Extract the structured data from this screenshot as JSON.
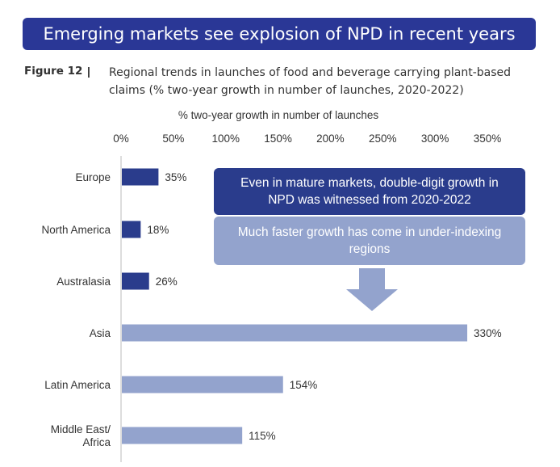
{
  "banner": {
    "title": "Emerging markets see explosion of NPD in recent years"
  },
  "figure": {
    "label": "Figure 12",
    "separator": "|",
    "caption": "Regional trends in launches of food and beverage carrying plant-based claims (% two-year growth in number of launches, 2020-2022)"
  },
  "callouts": {
    "mature": "Even in mature markets, double-digit growth in NPD was witnessed from 2020-2022",
    "faster": "Much faster growth has come in under-indexing regions"
  },
  "colors": {
    "banner": "#2a3796",
    "dark_bar": "#2a3c8c",
    "light_bar": "#93a3cd"
  },
  "chart_data": {
    "type": "bar",
    "orientation": "horizontal",
    "xlabel": "% two-year growth in number of launches",
    "xlim": [
      0,
      350
    ],
    "ticks": [
      0,
      50,
      100,
      150,
      200,
      250,
      300,
      350
    ],
    "tick_labels": [
      "0%",
      "50%",
      "100%",
      "150%",
      "200%",
      "250%",
      "300%",
      "350%"
    ],
    "categories": [
      {
        "label": [
          "Europe"
        ],
        "value": 35,
        "display": "35%",
        "group": "mature"
      },
      {
        "label": [
          "North America"
        ],
        "value": 18,
        "display": "18%",
        "group": "mature"
      },
      {
        "label": [
          "Australasia"
        ],
        "value": 26,
        "display": "26%",
        "group": "mature"
      },
      {
        "label": [
          "Asia"
        ],
        "value": 330,
        "display": "330%",
        "group": "emerging"
      },
      {
        "label": [
          "Latin America"
        ],
        "value": 154,
        "display": "154%",
        "group": "emerging"
      },
      {
        "label": [
          "Middle East/",
          "Africa"
        ],
        "value": 115,
        "display": "115%",
        "group": "emerging"
      }
    ]
  }
}
